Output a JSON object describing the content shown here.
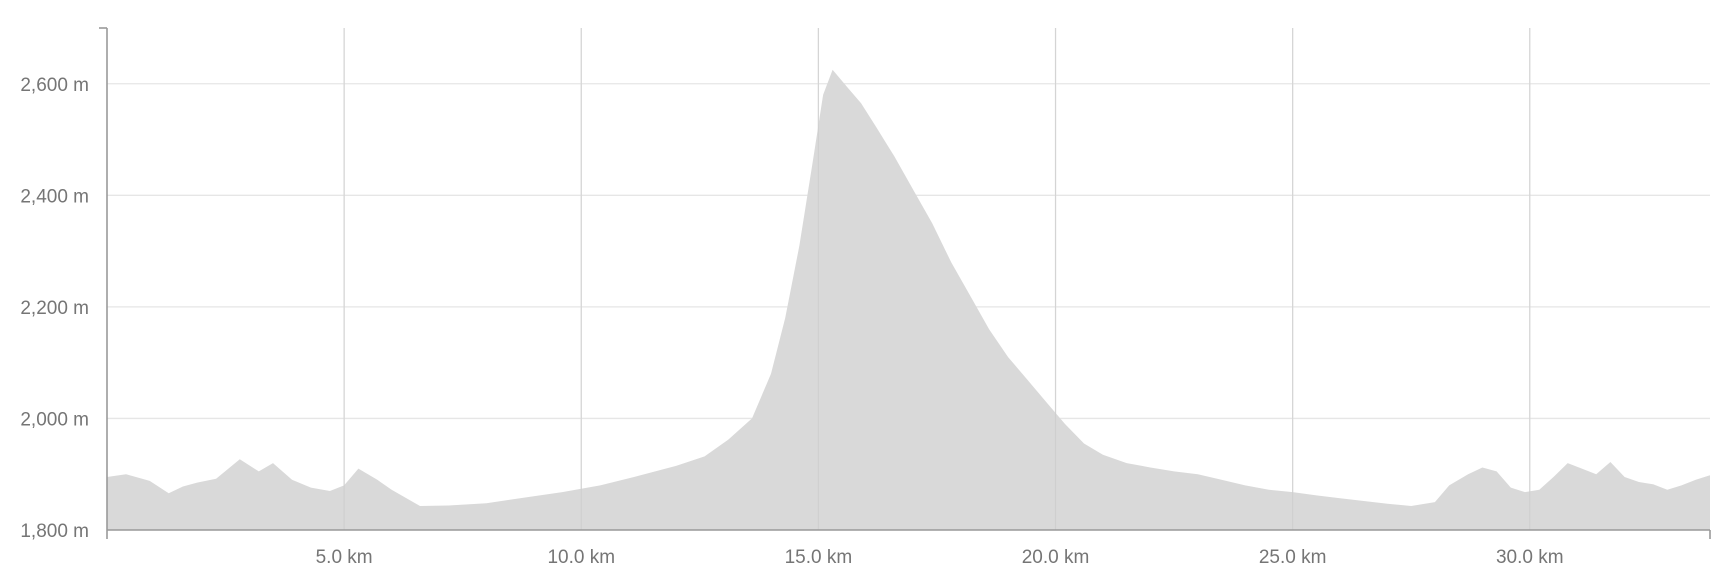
{
  "chart_data": {
    "type": "area",
    "title": "",
    "xlabel": "",
    "ylabel": "",
    "x_unit": "km",
    "y_unit": "m",
    "xlim": [
      0,
      33.8
    ],
    "ylim": [
      1800,
      2700
    ],
    "x_ticks": [
      {
        "value": 5,
        "label": "5.0 km"
      },
      {
        "value": 10,
        "label": "10.0 km"
      },
      {
        "value": 15,
        "label": "15.0 km"
      },
      {
        "value": 20,
        "label": "20.0 km"
      },
      {
        "value": 25,
        "label": "25.0 km"
      },
      {
        "value": 30,
        "label": "30.0 km"
      }
    ],
    "y_ticks": [
      {
        "value": 1800,
        "label": "1,800 m"
      },
      {
        "value": 2000,
        "label": "2,000 m"
      },
      {
        "value": 2200,
        "label": "2,200 m"
      },
      {
        "value": 2400,
        "label": "2,400 m"
      },
      {
        "value": 2600,
        "label": "2,600 m"
      }
    ],
    "grid": true,
    "fill_color": "#d9d9d9",
    "series": [
      {
        "x": [
          0,
          0.4,
          0.9,
          1.3,
          1.6,
          1.9,
          2.3,
          2.8,
          3.2,
          3.5,
          3.9,
          4.3,
          4.7,
          5.0,
          5.3,
          5.7,
          6.0,
          6.6,
          7.2,
          8.0,
          8.8,
          9.6,
          10.4,
          11.2,
          12.0,
          12.6,
          13.1,
          13.6,
          14.0,
          14.3,
          14.6,
          14.9,
          15.1,
          15.3,
          15.6,
          15.9,
          16.2,
          16.6,
          17.0,
          17.4,
          17.8,
          18.2,
          18.6,
          19.0,
          19.4,
          19.8,
          20.2,
          20.6,
          21.0,
          21.5,
          22.0,
          22.5,
          23.0,
          23.5,
          24.0,
          24.5,
          25.0,
          25.5,
          26.0,
          26.5,
          27.0,
          27.5,
          28.0,
          28.3,
          28.7,
          29.0,
          29.3,
          29.6,
          29.9,
          30.2,
          30.5,
          30.8,
          31.1,
          31.4,
          31.7,
          32.0,
          32.3,
          32.6,
          32.9,
          33.2,
          33.5,
          33.8
        ],
        "y": [
          1895,
          1900,
          1888,
          1866,
          1878,
          1885,
          1892,
          1927,
          1905,
          1920,
          1890,
          1876,
          1870,
          1880,
          1910,
          1890,
          1872,
          1843,
          1844,
          1848,
          1858,
          1868,
          1880,
          1897,
          1915,
          1932,
          1962,
          2000,
          2080,
          2180,
          2310,
          2470,
          2580,
          2625,
          2595,
          2565,
          2525,
          2470,
          2410,
          2350,
          2280,
          2220,
          2160,
          2110,
          2070,
          2030,
          1990,
          1955,
          1935,
          1920,
          1912,
          1905,
          1900,
          1890,
          1880,
          1872,
          1868,
          1862,
          1857,
          1852,
          1847,
          1843,
          1850,
          1880,
          1900,
          1912,
          1905,
          1876,
          1868,
          1872,
          1895,
          1920,
          1910,
          1900,
          1922,
          1895,
          1886,
          1882,
          1872,
          1880,
          1890,
          1898
        ]
      }
    ]
  }
}
